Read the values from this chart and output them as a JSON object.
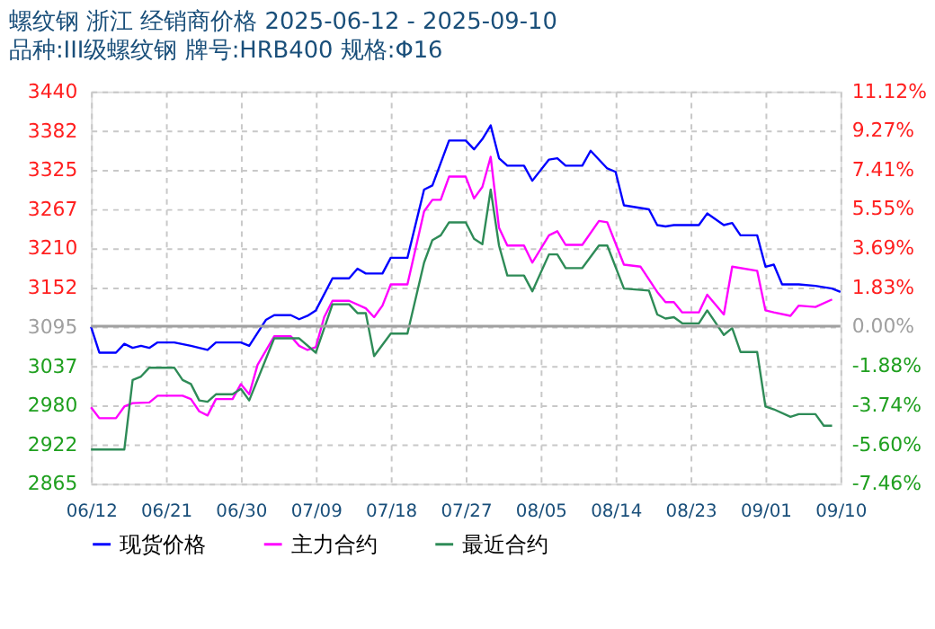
{
  "chart_data": {
    "type": "line",
    "title": "螺纹钢 浙江 经销商价格 2025-06-12 - 2025-09-10",
    "subtitle": "品种:III级螺纹钢 牌号:HRB400 规格:Φ16",
    "series": [
      {
        "name": "现货价格",
        "color": "#0000ff",
        "x": [
          "2025-06-12",
          "2025-06-13",
          "2025-06-15",
          "2025-06-16",
          "2025-06-17",
          "2025-06-18",
          "2025-06-19",
          "2025-06-20",
          "2025-06-22",
          "2025-06-24",
          "2025-06-26",
          "2025-06-27",
          "2025-06-30",
          "2025-07-01",
          "2025-07-03",
          "2025-07-04",
          "2025-07-06",
          "2025-07-07",
          "2025-07-08",
          "2025-07-09",
          "2025-07-11",
          "2025-07-13",
          "2025-07-14",
          "2025-07-15",
          "2025-07-17",
          "2025-07-18",
          "2025-07-20",
          "2025-07-22",
          "2025-07-23",
          "2025-07-25",
          "2025-07-27",
          "2025-07-28",
          "2025-07-29",
          "2025-07-30",
          "2025-07-31",
          "2025-08-01",
          "2025-08-03",
          "2025-08-04",
          "2025-08-06",
          "2025-08-07",
          "2025-08-08",
          "2025-08-10",
          "2025-08-11",
          "2025-08-13",
          "2025-08-14",
          "2025-08-15",
          "2025-08-18",
          "2025-08-19",
          "2025-08-20",
          "2025-08-21",
          "2025-08-24",
          "2025-08-25",
          "2025-08-27",
          "2025-08-28",
          "2025-08-29",
          "2025-08-31",
          "2025-09-01",
          "2025-09-02",
          "2025-09-03",
          "2025-09-05",
          "2025-09-07",
          "2025-09-09",
          "2025-09-10"
        ],
        "values": [
          3095,
          3057,
          3057,
          3070,
          3064,
          3067,
          3064,
          3072,
          3072,
          3067,
          3061,
          3072,
          3072,
          3067,
          3105,
          3112,
          3112,
          3106,
          3111,
          3119,
          3166,
          3166,
          3180,
          3173,
          3173,
          3196,
          3196,
          3296,
          3302,
          3368,
          3368,
          3355,
          3370,
          3390,
          3342,
          3331,
          3331,
          3309,
          3340,
          3342,
          3331,
          3331,
          3353,
          3327,
          3322,
          3273,
          3267,
          3244,
          3242,
          3244,
          3244,
          3261,
          3244,
          3247,
          3229,
          3229,
          3183,
          3186,
          3157,
          3157,
          3155,
          3151,
          3146
        ]
      },
      {
        "name": "主力合约",
        "color": "#ff00ff",
        "x": [
          "2025-06-12",
          "2025-06-13",
          "2025-06-15",
          "2025-06-16",
          "2025-06-17",
          "2025-06-19",
          "2025-06-20",
          "2025-06-23",
          "2025-06-24",
          "2025-06-25",
          "2025-06-26",
          "2025-06-27",
          "2025-06-29",
          "2025-06-30",
          "2025-07-01",
          "2025-07-02",
          "2025-07-04",
          "2025-07-06",
          "2025-07-07",
          "2025-07-08",
          "2025-07-09",
          "2025-07-10",
          "2025-07-11",
          "2025-07-13",
          "2025-07-15",
          "2025-07-16",
          "2025-07-17",
          "2025-07-18",
          "2025-07-20",
          "2025-07-22",
          "2025-07-23",
          "2025-07-24",
          "2025-07-25",
          "2025-07-27",
          "2025-07-28",
          "2025-07-29",
          "2025-07-30",
          "2025-07-31",
          "2025-08-01",
          "2025-08-03",
          "2025-08-04",
          "2025-08-06",
          "2025-08-07",
          "2025-08-08",
          "2025-08-10",
          "2025-08-12",
          "2025-08-13",
          "2025-08-15",
          "2025-08-17",
          "2025-08-19",
          "2025-08-20",
          "2025-08-21",
          "2025-08-22",
          "2025-08-24",
          "2025-08-25",
          "2025-08-27",
          "2025-08-28",
          "2025-08-31",
          "2025-09-01",
          "2025-09-02",
          "2025-09-04",
          "2025-09-05",
          "2025-09-07",
          "2025-09-09"
        ],
        "values": [
          2977,
          2961,
          2961,
          2978,
          2983,
          2984,
          2994,
          2994,
          2989,
          2971,
          2965,
          2989,
          2989,
          3011,
          2996,
          3039,
          3081,
          3081,
          3067,
          3061,
          3065,
          3109,
          3133,
          3133,
          3122,
          3109,
          3126,
          3157,
          3157,
          3264,
          3281,
          3281,
          3315,
          3315,
          3283,
          3300,
          3344,
          3240,
          3214,
          3214,
          3189,
          3229,
          3235,
          3215,
          3215,
          3250,
          3248,
          3186,
          3183,
          3146,
          3131,
          3131,
          3116,
          3116,
          3142,
          3113,
          3183,
          3177,
          3119,
          3116,
          3111,
          3126,
          3124,
          3135
        ]
      },
      {
        "name": "最近合约",
        "color": "#2e8b57",
        "x": [
          "2025-06-12",
          "2025-06-16",
          "2025-06-17",
          "2025-06-18",
          "2025-06-19",
          "2025-06-22",
          "2025-06-23",
          "2025-06-24",
          "2025-06-25",
          "2025-06-26",
          "2025-06-27",
          "2025-06-29",
          "2025-06-30",
          "2025-07-01",
          "2025-07-04",
          "2025-07-07",
          "2025-07-09",
          "2025-07-11",
          "2025-07-13",
          "2025-07-14",
          "2025-07-15",
          "2025-07-16",
          "2025-07-18",
          "2025-07-20",
          "2025-07-22",
          "2025-07-23",
          "2025-07-24",
          "2025-07-25",
          "2025-07-27",
          "2025-07-28",
          "2025-07-29",
          "2025-07-30",
          "2025-07-31",
          "2025-08-01",
          "2025-08-03",
          "2025-08-04",
          "2025-08-06",
          "2025-08-07",
          "2025-08-08",
          "2025-08-10",
          "2025-08-12",
          "2025-08-13",
          "2025-08-15",
          "2025-08-18",
          "2025-08-19",
          "2025-08-20",
          "2025-08-21",
          "2025-08-22",
          "2025-08-24",
          "2025-08-25",
          "2025-08-27",
          "2025-08-28",
          "2025-08-29",
          "2025-08-31",
          "2025-09-01",
          "2025-09-02",
          "2025-09-04",
          "2025-09-05",
          "2025-09-07",
          "2025-09-08",
          "2025-09-09"
        ],
        "values": [
          2915,
          2915,
          3017,
          3022,
          3035,
          3035,
          3017,
          3011,
          2987,
          2985,
          2996,
          2996,
          3004,
          2987,
          3078,
          3078,
          3057,
          3128,
          3128,
          3115,
          3115,
          3052,
          3085,
          3085,
          3189,
          3222,
          3229,
          3248,
          3248,
          3224,
          3216,
          3296,
          3214,
          3170,
          3170,
          3147,
          3201,
          3201,
          3181,
          3181,
          3214,
          3214,
          3151,
          3148,
          3113,
          3107,
          3109,
          3100,
          3100,
          3119,
          3083,
          3093,
          3058,
          3058,
          2978,
          2974,
          2963,
          2967,
          2967,
          2950,
          2950
        ]
      }
    ],
    "xlim": [
      "2025-06-12",
      "2025-09-10"
    ],
    "xticks": [
      {
        "value": "2025-06-12",
        "label": "06/12"
      },
      {
        "value": "2025-06-21",
        "label": "06/21"
      },
      {
        "value": "2025-06-30",
        "label": "06/30"
      },
      {
        "value": "2025-07-09",
        "label": "07/09"
      },
      {
        "value": "2025-07-18",
        "label": "07/18"
      },
      {
        "value": "2025-07-27",
        "label": "07/27"
      },
      {
        "value": "2025-08-05",
        "label": "08/05"
      },
      {
        "value": "2025-08-14",
        "label": "08/14"
      },
      {
        "value": "2025-08-23",
        "label": "08/23"
      },
      {
        "value": "2025-09-01",
        "label": "09/01"
      },
      {
        "value": "2025-09-10",
        "label": "09/10"
      }
    ],
    "ylim": [
      2865,
      3440
    ],
    "yticks": [
      2865,
      2922,
      2980,
      3037,
      3095,
      3152,
      3210,
      3267,
      3325,
      3382,
      3440
    ],
    "y2lim": [
      -7.46,
      11.12
    ],
    "y2ticks": [
      {
        "value": -7.46,
        "label": "-7.46%"
      },
      {
        "value": -5.6,
        "label": "-5.60%"
      },
      {
        "value": -3.74,
        "label": "-3.74%"
      },
      {
        "value": -1.88,
        "label": "-1.88%"
      },
      {
        "value": 0,
        "label": "0.00%"
      },
      {
        "value": 1.83,
        "label": "1.83%"
      },
      {
        "value": 3.69,
        "label": "3.69%"
      },
      {
        "value": 5.55,
        "label": "5.55%"
      },
      {
        "value": 7.41,
        "label": "7.41%"
      },
      {
        "value": 9.27,
        "label": "9.27%"
      },
      {
        "value": 11.12,
        "label": "11.12%"
      }
    ],
    "ref_lines": [
      {
        "axis": "y2",
        "value": 0,
        "color": "#a0a0a0",
        "line_style": "solid"
      }
    ],
    "grid": true,
    "legend": "bottom",
    "marker": "none",
    "line_style": "solid"
  }
}
